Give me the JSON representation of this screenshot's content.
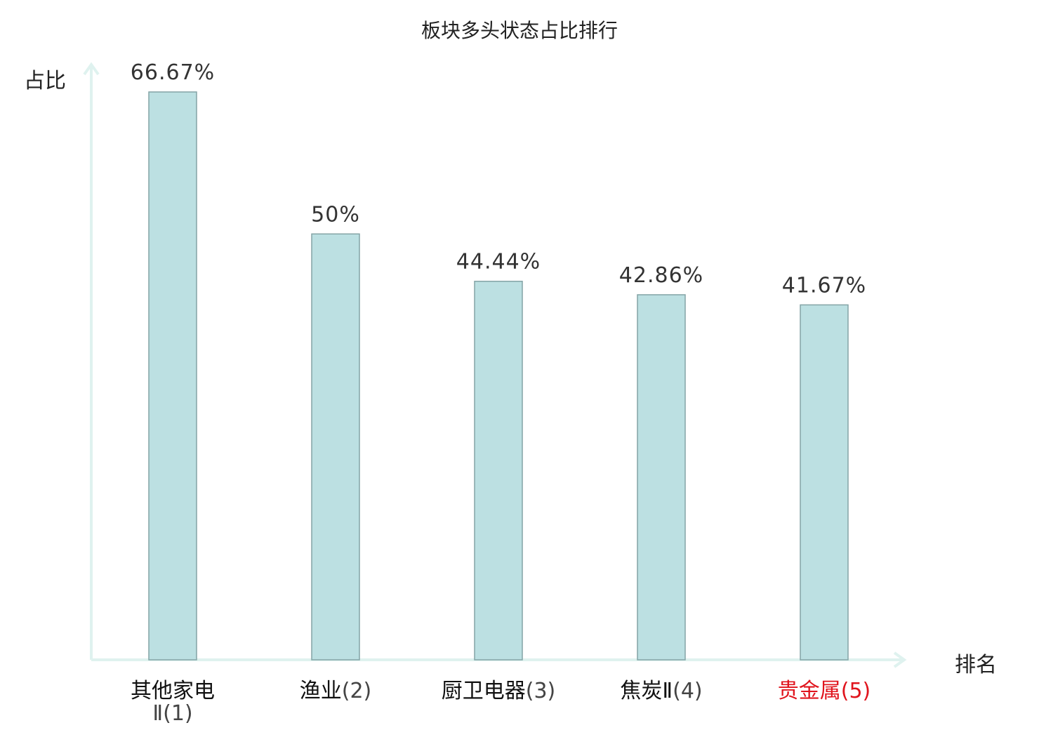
{
  "chart_data": {
    "type": "bar",
    "title": "板块多头状态占比排行",
    "ylabel": "占比",
    "xlabel": "排名",
    "categories": [
      {
        "name": "其他家电Ⅱ",
        "rank": "(1)",
        "highlight": false
      },
      {
        "name": "渔业",
        "rank": "(2)",
        "highlight": false
      },
      {
        "name": "厨卫电器",
        "rank": "(3)",
        "highlight": false
      },
      {
        "name": "焦炭Ⅱ",
        "rank": "(4)",
        "highlight": false
      },
      {
        "name": "贵金属",
        "rank": "(5)",
        "highlight": true
      }
    ],
    "values": [
      66.67,
      50,
      44.44,
      42.86,
      41.67
    ],
    "value_labels": [
      "66.67%",
      "50%",
      "44.44%",
      "42.86%",
      "41.67%"
    ],
    "colors": {
      "bar_fill": "#bce0e2",
      "bar_stroke": "#84a4a6",
      "axis": "#dff2ef",
      "label": "#333333",
      "highlight": "#e0141d"
    }
  }
}
